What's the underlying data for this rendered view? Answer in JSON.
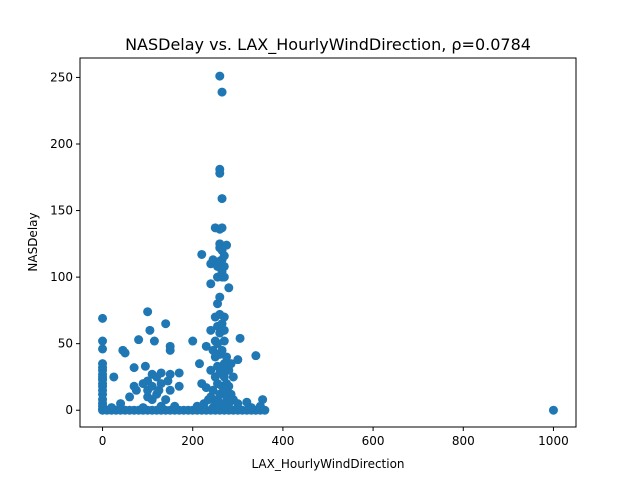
{
  "chart_data": {
    "type": "scatter",
    "title": "NASDelay vs. LAX_HourlyWindDirection, ρ=0.0784",
    "xlabel": "LAX_HourlyWindDirection",
    "ylabel": "NASDelay",
    "xlim": [
      -50,
      1050
    ],
    "ylim": [
      -12.6,
      264.6
    ],
    "xticks": [
      0,
      200,
      400,
      600,
      800,
      1000
    ],
    "yticks": [
      0,
      50,
      100,
      150,
      200,
      250
    ],
    "grid": false,
    "color": "#1f77b4",
    "points": [
      [
        0,
        0
      ],
      [
        0,
        1
      ],
      [
        0,
        3
      ],
      [
        0,
        5
      ],
      [
        0,
        8
      ],
      [
        0,
        12
      ],
      [
        0,
        15
      ],
      [
        0,
        18
      ],
      [
        0,
        20
      ],
      [
        0,
        23
      ],
      [
        0,
        25
      ],
      [
        0,
        27
      ],
      [
        0,
        30
      ],
      [
        0,
        32
      ],
      [
        0,
        35
      ],
      [
        0,
        46
      ],
      [
        0,
        52
      ],
      [
        0,
        69
      ],
      [
        10,
        0
      ],
      [
        20,
        0
      ],
      [
        30,
        0
      ],
      [
        40,
        0
      ],
      [
        50,
        0
      ],
      [
        60,
        0
      ],
      [
        70,
        0
      ],
      [
        80,
        0
      ],
      [
        90,
        0
      ],
      [
        100,
        0
      ],
      [
        110,
        0
      ],
      [
        120,
        0
      ],
      [
        130,
        0
      ],
      [
        140,
        0
      ],
      [
        150,
        0
      ],
      [
        160,
        0
      ],
      [
        170,
        0
      ],
      [
        180,
        0
      ],
      [
        190,
        0
      ],
      [
        200,
        0
      ],
      [
        210,
        0
      ],
      [
        220,
        0
      ],
      [
        230,
        0
      ],
      [
        240,
        0
      ],
      [
        250,
        0
      ],
      [
        260,
        0
      ],
      [
        270,
        0
      ],
      [
        280,
        0
      ],
      [
        290,
        0
      ],
      [
        300,
        0
      ],
      [
        310,
        0
      ],
      [
        320,
        0
      ],
      [
        330,
        0
      ],
      [
        340,
        0
      ],
      [
        350,
        0
      ],
      [
        360,
        0
      ],
      [
        20,
        2
      ],
      [
        25,
        25
      ],
      [
        40,
        5
      ],
      [
        45,
        45
      ],
      [
        50,
        43
      ],
      [
        60,
        10
      ],
      [
        70,
        18
      ],
      [
        70,
        32
      ],
      [
        75,
        15
      ],
      [
        80,
        53
      ],
      [
        90,
        2
      ],
      [
        90,
        20
      ],
      [
        95,
        33
      ],
      [
        100,
        10
      ],
      [
        100,
        15
      ],
      [
        100,
        22
      ],
      [
        100,
        74
      ],
      [
        105,
        60
      ],
      [
        110,
        8
      ],
      [
        110,
        18
      ],
      [
        110,
        27
      ],
      [
        115,
        52
      ],
      [
        120,
        12
      ],
      [
        120,
        25
      ],
      [
        125,
        15
      ],
      [
        130,
        3
      ],
      [
        130,
        20
      ],
      [
        130,
        28
      ],
      [
        140,
        65
      ],
      [
        140,
        8
      ],
      [
        145,
        22
      ],
      [
        150,
        15
      ],
      [
        150,
        27
      ],
      [
        150,
        45
      ],
      [
        150,
        48
      ],
      [
        160,
        3
      ],
      [
        170,
        18
      ],
      [
        170,
        28
      ],
      [
        200,
        52
      ],
      [
        210,
        3
      ],
      [
        215,
        35
      ],
      [
        220,
        20
      ],
      [
        220,
        117
      ],
      [
        225,
        5
      ],
      [
        230,
        17
      ],
      [
        230,
        48
      ],
      [
        235,
        8
      ],
      [
        240,
        10
      ],
      [
        240,
        30
      ],
      [
        240,
        60
      ],
      [
        240,
        95
      ],
      [
        240,
        110
      ],
      [
        245,
        2
      ],
      [
        245,
        15
      ],
      [
        245,
        45
      ],
      [
        245,
        113
      ],
      [
        250,
        5
      ],
      [
        250,
        25
      ],
      [
        250,
        40
      ],
      [
        250,
        52
      ],
      [
        250,
        70
      ],
      [
        250,
        137
      ],
      [
        255,
        8
      ],
      [
        255,
        20
      ],
      [
        255,
        33
      ],
      [
        255,
        50
      ],
      [
        255,
        63
      ],
      [
        255,
        80
      ],
      [
        255,
        100
      ],
      [
        255,
        108
      ],
      [
        260,
        2
      ],
      [
        260,
        12
      ],
      [
        260,
        28
      ],
      [
        260,
        42
      ],
      [
        260,
        58
      ],
      [
        260,
        72
      ],
      [
        260,
        85
      ],
      [
        260,
        112
      ],
      [
        260,
        122
      ],
      [
        260,
        125
      ],
      [
        260,
        136
      ],
      [
        260,
        178
      ],
      [
        260,
        181
      ],
      [
        260,
        251
      ],
      [
        265,
        5
      ],
      [
        265,
        18
      ],
      [
        265,
        30
      ],
      [
        265,
        45
      ],
      [
        265,
        60
      ],
      [
        265,
        65
      ],
      [
        265,
        100
      ],
      [
        265,
        104
      ],
      [
        265,
        113
      ],
      [
        265,
        120
      ],
      [
        265,
        137
      ],
      [
        265,
        159
      ],
      [
        265,
        239
      ],
      [
        270,
        3
      ],
      [
        270,
        15
      ],
      [
        270,
        25
      ],
      [
        270,
        35
      ],
      [
        270,
        52
      ],
      [
        270,
        60
      ],
      [
        270,
        70
      ],
      [
        270,
        100
      ],
      [
        270,
        108
      ],
      [
        270,
        116
      ],
      [
        275,
        10
      ],
      [
        275,
        20
      ],
      [
        275,
        40
      ],
      [
        275,
        124
      ],
      [
        280,
        5
      ],
      [
        280,
        18
      ],
      [
        280,
        30
      ],
      [
        280,
        92
      ],
      [
        285,
        12
      ],
      [
        285,
        35
      ],
      [
        290,
        8
      ],
      [
        290,
        25
      ],
      [
        300,
        5
      ],
      [
        300,
        38
      ],
      [
        305,
        54
      ],
      [
        320,
        6
      ],
      [
        330,
        2
      ],
      [
        340,
        41
      ],
      [
        350,
        3
      ],
      [
        355,
        8
      ],
      [
        1000,
        0
      ]
    ]
  }
}
